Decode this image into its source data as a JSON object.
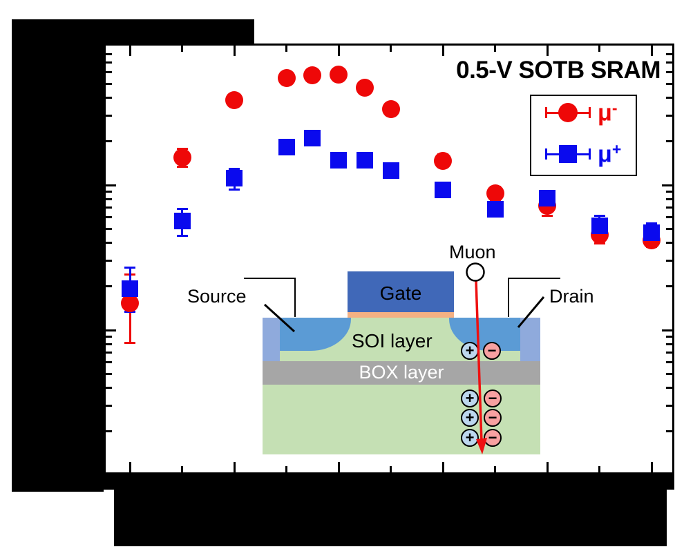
{
  "title": "0.5-V SOTB SRAM",
  "redactions": {
    "note": "Solid black blocks cover the y-axis title, y-axis tick labels, x-axis tick labels and x-axis title; no label text is visible."
  },
  "chart_data": {
    "type": "scatter",
    "title": "0.5-V SOTB SRAM",
    "x_axis": {
      "title_redacted": true,
      "tick_labels_redacted": true,
      "ticks_major_units": [
        0,
        2,
        4,
        6,
        8,
        10
      ],
      "ticks_minor_units": [
        1,
        3,
        5,
        7,
        9
      ]
    },
    "y_axis": {
      "scale": "log",
      "title_redacted": true,
      "tick_labels_redacted": true,
      "decades_spanned": 3,
      "major_decade_v": [
        1,
        2
      ]
    },
    "legend_position": "upper right",
    "series": [
      {
        "name": "mu-minus",
        "legend_base": "μ",
        "legend_sup": "-",
        "marker": "circle",
        "color": "#EE0808",
        "points": [
          {
            "x": 0,
            "v": 1.188,
            "lo": 0.91,
            "hi": 1.381
          },
          {
            "x": 1,
            "v": 2.19,
            "lo": 2.124,
            "hi": 2.252
          },
          {
            "x": 2,
            "v": 2.586,
            "lo": 2.548,
            "hi": 2.624
          },
          {
            "x": 3,
            "v": 2.738,
            "lo": 2.705,
            "hi": 2.771
          },
          {
            "x": 3.5,
            "v": 2.757,
            "lo": 2.724,
            "hi": 2.79
          },
          {
            "x": 4,
            "v": 2.762,
            "lo": 2.729,
            "hi": 2.795
          },
          {
            "x": 4.5,
            "v": 2.671,
            "lo": 2.638,
            "hi": 2.705
          },
          {
            "x": 5,
            "v": 2.524,
            "lo": 2.49,
            "hi": 2.557
          },
          {
            "x": 6,
            "v": 2.167,
            "lo": 2.124,
            "hi": 2.21
          },
          {
            "x": 7,
            "v": 1.943,
            "lo": 1.895,
            "hi": 1.986
          },
          {
            "x": 8,
            "v": 1.857,
            "lo": 1.79,
            "hi": 1.905
          },
          {
            "x": 9,
            "v": 1.657,
            "lo": 1.6,
            "hi": 1.705
          },
          {
            "x": 10,
            "v": 1.619,
            "lo": 1.576,
            "hi": 1.667
          }
        ]
      },
      {
        "name": "mu-plus",
        "legend_base": "μ",
        "legend_sup": "+",
        "marker": "square",
        "color": "#0A0AEE",
        "points": [
          {
            "x": 0,
            "v": 1.286,
            "lo": 1.124,
            "hi": 1.433
          },
          {
            "x": 1,
            "v": 1.752,
            "lo": 1.648,
            "hi": 1.838
          },
          {
            "x": 2,
            "v": 2.048,
            "lo": 1.967,
            "hi": 2.11
          },
          {
            "x": 3,
            "v": 2.262,
            "lo": 2.219,
            "hi": 2.3
          },
          {
            "x": 3.5,
            "v": 2.324,
            "lo": 2.286,
            "hi": 2.362
          },
          {
            "x": 4,
            "v": 2.171,
            "lo": 2.133,
            "hi": 2.21
          },
          {
            "x": 4.5,
            "v": 2.171,
            "lo": 2.133,
            "hi": 2.21
          },
          {
            "x": 5,
            "v": 2.1,
            "lo": 2.062,
            "hi": 2.138
          },
          {
            "x": 6,
            "v": 1.967,
            "lo": 1.919,
            "hi": 2.01
          },
          {
            "x": 7,
            "v": 1.833,
            "lo": 1.781,
            "hi": 1.881
          },
          {
            "x": 8,
            "v": 1.91,
            "lo": 1.857,
            "hi": 1.957
          },
          {
            "x": 9,
            "v": 1.719,
            "lo": 1.652,
            "hi": 1.786
          },
          {
            "x": 10,
            "v": 1.671,
            "lo": 1.61,
            "hi": 1.738
          }
        ]
      }
    ]
  },
  "inset": {
    "muon_label": "Muon",
    "source_label": "Source",
    "gate_label": "Gate",
    "drain_label": "Drain",
    "soi_label": "SOI layer",
    "box_label": "BOX layer",
    "plus_symbol": "+",
    "minus_symbol": "−",
    "colors": {
      "gate": "#4068B8",
      "gate_oxide": "#F4B183",
      "source_drain": "#5B9BD5",
      "silicide_edge": "#8FAADC",
      "silicon": "#C5E0B4",
      "box_layer": "#A6A6A6",
      "positive_charge": "#BDD7EE",
      "negative_charge": "#F8A1A1",
      "muon_track": "#EE1111"
    }
  }
}
